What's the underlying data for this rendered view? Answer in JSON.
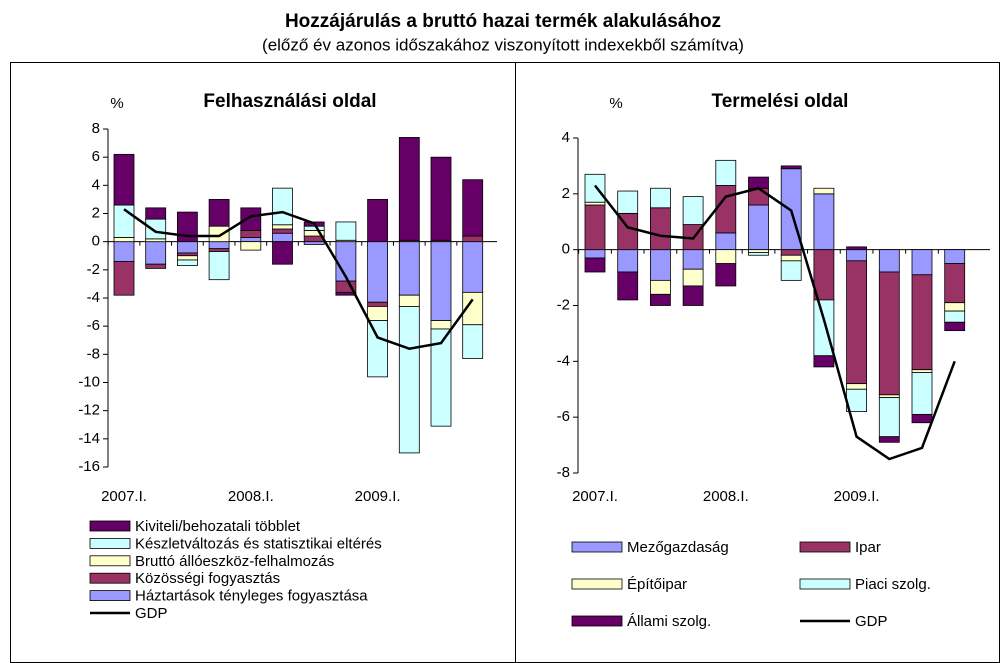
{
  "header": {
    "title": "Hozzájárulás a bruttó hazai termék alakulásához",
    "subtitle": "(előző év azonos időszakához viszonyított indexekből számítva)"
  },
  "chart_data": [
    {
      "type": "bar",
      "stacked": true,
      "unit_label": "%",
      "title": "Felhasználási oldal",
      "categories": [
        "2007.I.",
        null,
        null,
        null,
        "2008.I.",
        null,
        null,
        null,
        "2009.I.",
        null,
        null,
        null
      ],
      "ylim": [
        -16,
        8
      ],
      "yticks": [
        -16,
        -14,
        -12,
        -10,
        -8,
        -6,
        -4,
        -2,
        0,
        2,
        4,
        6,
        8
      ],
      "legend_order": "reversed",
      "legend_columns": 1,
      "series": [
        {
          "name": "Háztartások tényleges fogyasztása",
          "color": "#9999ff",
          "values": [
            -1.4,
            -1.6,
            -0.8,
            -0.5,
            0.3,
            0.6,
            -0.2,
            -2.8,
            -4.3,
            -3.8,
            -5.6,
            -3.6
          ]
        },
        {
          "name": "Közösségi fogyasztás",
          "color": "#993366",
          "values": [
            -2.4,
            -0.3,
            -0.2,
            -0.2,
            0.5,
            0.3,
            0.4,
            -0.8,
            -0.3,
            0.1,
            0.1,
            0.4
          ]
        },
        {
          "name": "Bruttó állóeszköz-felhalmozás",
          "color": "#ffffcc",
          "values": [
            0.3,
            0.2,
            -0.3,
            1.1,
            -0.6,
            0.3,
            0.4,
            0.1,
            -1.0,
            -0.8,
            -0.6,
            -2.3
          ]
        },
        {
          "name": "Készletváltozás és statisztikai eltérés",
          "color": "#ccffff",
          "values": [
            2.3,
            1.4,
            -0.4,
            -2.0,
            0.0,
            2.6,
            0.3,
            1.3,
            -4.0,
            -10.4,
            -6.9,
            -2.4
          ]
        },
        {
          "name": "Kiviteli/behozatali többlet",
          "color": "#660066",
          "values": [
            3.6,
            0.8,
            2.1,
            1.9,
            1.6,
            -1.6,
            0.3,
            -0.2,
            3.0,
            7.3,
            5.9,
            4.0
          ]
        },
        {
          "name": "GDP",
          "kind": "line",
          "color": "#000000",
          "values": [
            2.3,
            0.7,
            0.4,
            0.4,
            1.8,
            2.1,
            1.3,
            -2.5,
            -6.8,
            -7.6,
            -7.2,
            -4.1
          ]
        }
      ]
    },
    {
      "type": "bar",
      "stacked": true,
      "unit_label": "%",
      "title": "Termelési oldal",
      "categories": [
        "2007.I.",
        null,
        null,
        null,
        "2008.I.",
        null,
        null,
        null,
        "2009.I.",
        null,
        null,
        null
      ],
      "ylim": [
        -8,
        4
      ],
      "yticks": [
        -8,
        -6,
        -4,
        -2,
        0,
        2,
        4
      ],
      "legend_order": "normal",
      "legend_columns": 2,
      "series": [
        {
          "name": "Mezőgazdaság",
          "color": "#9999ff",
          "values": [
            -0.3,
            -0.8,
            -1.1,
            -0.7,
            0.6,
            1.6,
            2.9,
            2.0,
            -0.4,
            -0.8,
            -0.9,
            -0.5
          ]
        },
        {
          "name": "Ipar",
          "color": "#993366",
          "values": [
            1.6,
            1.3,
            1.5,
            0.9,
            1.7,
            0.6,
            -0.2,
            -1.8,
            -4.4,
            -4.4,
            -3.4,
            -1.4
          ]
        },
        {
          "name": "Építőipar",
          "color": "#ffffcc",
          "values": [
            0.1,
            0.0,
            -0.5,
            -0.6,
            -0.5,
            -0.1,
            -0.2,
            0.2,
            -0.2,
            -0.1,
            -0.1,
            -0.3
          ]
        },
        {
          "name": "Piaci szolg.",
          "color": "#ccffff",
          "values": [
            1.0,
            0.8,
            0.7,
            1.0,
            0.9,
            -0.1,
            -0.7,
            -2.0,
            -0.8,
            -1.4,
            -1.5,
            -0.4
          ]
        },
        {
          "name": "Állami szolg.",
          "color": "#660066",
          "values": [
            -0.5,
            -1.0,
            -0.4,
            -0.7,
            -0.8,
            0.4,
            0.1,
            -0.4,
            0.1,
            -0.2,
            -0.3,
            -0.3
          ]
        },
        {
          "name": "GDP",
          "kind": "line",
          "color": "#000000",
          "values": [
            2.3,
            0.8,
            0.5,
            0.4,
            1.9,
            2.2,
            1.4,
            -2.5,
            -6.7,
            -7.5,
            -7.1,
            -4.0
          ]
        }
      ]
    }
  ]
}
